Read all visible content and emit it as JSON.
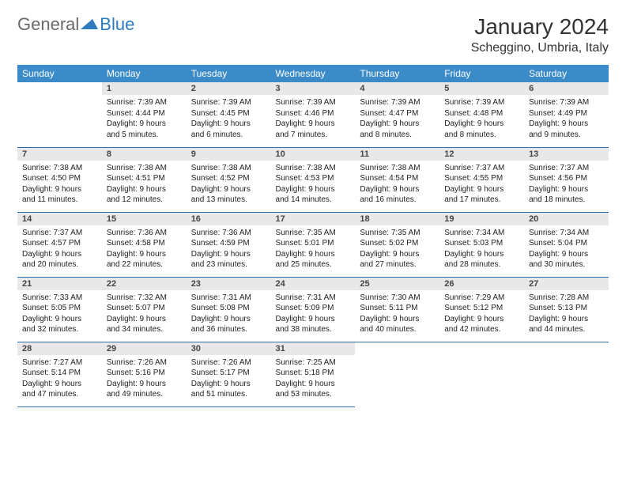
{
  "logo": {
    "text1": "General",
    "text2": "Blue"
  },
  "header": {
    "title": "January 2024",
    "location": "Scheggino, Umbria, Italy"
  },
  "colors": {
    "header_bg": "#3b8bc9",
    "header_fg": "#ffffff",
    "daynum_bg": "#e8e8e8",
    "border": "#2a6fa8",
    "logo_gray": "#6a6a6a",
    "logo_blue": "#2f7bbf"
  },
  "weekdays": [
    "Sunday",
    "Monday",
    "Tuesday",
    "Wednesday",
    "Thursday",
    "Friday",
    "Saturday"
  ],
  "weeks": [
    [
      null,
      {
        "n": "1",
        "sr": "Sunrise: 7:39 AM",
        "ss": "Sunset: 4:44 PM",
        "d1": "Daylight: 9 hours",
        "d2": "and 5 minutes."
      },
      {
        "n": "2",
        "sr": "Sunrise: 7:39 AM",
        "ss": "Sunset: 4:45 PM",
        "d1": "Daylight: 9 hours",
        "d2": "and 6 minutes."
      },
      {
        "n": "3",
        "sr": "Sunrise: 7:39 AM",
        "ss": "Sunset: 4:46 PM",
        "d1": "Daylight: 9 hours",
        "d2": "and 7 minutes."
      },
      {
        "n": "4",
        "sr": "Sunrise: 7:39 AM",
        "ss": "Sunset: 4:47 PM",
        "d1": "Daylight: 9 hours",
        "d2": "and 8 minutes."
      },
      {
        "n": "5",
        "sr": "Sunrise: 7:39 AM",
        "ss": "Sunset: 4:48 PM",
        "d1": "Daylight: 9 hours",
        "d2": "and 8 minutes."
      },
      {
        "n": "6",
        "sr": "Sunrise: 7:39 AM",
        "ss": "Sunset: 4:49 PM",
        "d1": "Daylight: 9 hours",
        "d2": "and 9 minutes."
      }
    ],
    [
      {
        "n": "7",
        "sr": "Sunrise: 7:38 AM",
        "ss": "Sunset: 4:50 PM",
        "d1": "Daylight: 9 hours",
        "d2": "and 11 minutes."
      },
      {
        "n": "8",
        "sr": "Sunrise: 7:38 AM",
        "ss": "Sunset: 4:51 PM",
        "d1": "Daylight: 9 hours",
        "d2": "and 12 minutes."
      },
      {
        "n": "9",
        "sr": "Sunrise: 7:38 AM",
        "ss": "Sunset: 4:52 PM",
        "d1": "Daylight: 9 hours",
        "d2": "and 13 minutes."
      },
      {
        "n": "10",
        "sr": "Sunrise: 7:38 AM",
        "ss": "Sunset: 4:53 PM",
        "d1": "Daylight: 9 hours",
        "d2": "and 14 minutes."
      },
      {
        "n": "11",
        "sr": "Sunrise: 7:38 AM",
        "ss": "Sunset: 4:54 PM",
        "d1": "Daylight: 9 hours",
        "d2": "and 16 minutes."
      },
      {
        "n": "12",
        "sr": "Sunrise: 7:37 AM",
        "ss": "Sunset: 4:55 PM",
        "d1": "Daylight: 9 hours",
        "d2": "and 17 minutes."
      },
      {
        "n": "13",
        "sr": "Sunrise: 7:37 AM",
        "ss": "Sunset: 4:56 PM",
        "d1": "Daylight: 9 hours",
        "d2": "and 18 minutes."
      }
    ],
    [
      {
        "n": "14",
        "sr": "Sunrise: 7:37 AM",
        "ss": "Sunset: 4:57 PM",
        "d1": "Daylight: 9 hours",
        "d2": "and 20 minutes."
      },
      {
        "n": "15",
        "sr": "Sunrise: 7:36 AM",
        "ss": "Sunset: 4:58 PM",
        "d1": "Daylight: 9 hours",
        "d2": "and 22 minutes."
      },
      {
        "n": "16",
        "sr": "Sunrise: 7:36 AM",
        "ss": "Sunset: 4:59 PM",
        "d1": "Daylight: 9 hours",
        "d2": "and 23 minutes."
      },
      {
        "n": "17",
        "sr": "Sunrise: 7:35 AM",
        "ss": "Sunset: 5:01 PM",
        "d1": "Daylight: 9 hours",
        "d2": "and 25 minutes."
      },
      {
        "n": "18",
        "sr": "Sunrise: 7:35 AM",
        "ss": "Sunset: 5:02 PM",
        "d1": "Daylight: 9 hours",
        "d2": "and 27 minutes."
      },
      {
        "n": "19",
        "sr": "Sunrise: 7:34 AM",
        "ss": "Sunset: 5:03 PM",
        "d1": "Daylight: 9 hours",
        "d2": "and 28 minutes."
      },
      {
        "n": "20",
        "sr": "Sunrise: 7:34 AM",
        "ss": "Sunset: 5:04 PM",
        "d1": "Daylight: 9 hours",
        "d2": "and 30 minutes."
      }
    ],
    [
      {
        "n": "21",
        "sr": "Sunrise: 7:33 AM",
        "ss": "Sunset: 5:05 PM",
        "d1": "Daylight: 9 hours",
        "d2": "and 32 minutes."
      },
      {
        "n": "22",
        "sr": "Sunrise: 7:32 AM",
        "ss": "Sunset: 5:07 PM",
        "d1": "Daylight: 9 hours",
        "d2": "and 34 minutes."
      },
      {
        "n": "23",
        "sr": "Sunrise: 7:31 AM",
        "ss": "Sunset: 5:08 PM",
        "d1": "Daylight: 9 hours",
        "d2": "and 36 minutes."
      },
      {
        "n": "24",
        "sr": "Sunrise: 7:31 AM",
        "ss": "Sunset: 5:09 PM",
        "d1": "Daylight: 9 hours",
        "d2": "and 38 minutes."
      },
      {
        "n": "25",
        "sr": "Sunrise: 7:30 AM",
        "ss": "Sunset: 5:11 PM",
        "d1": "Daylight: 9 hours",
        "d2": "and 40 minutes."
      },
      {
        "n": "26",
        "sr": "Sunrise: 7:29 AM",
        "ss": "Sunset: 5:12 PM",
        "d1": "Daylight: 9 hours",
        "d2": "and 42 minutes."
      },
      {
        "n": "27",
        "sr": "Sunrise: 7:28 AM",
        "ss": "Sunset: 5:13 PM",
        "d1": "Daylight: 9 hours",
        "d2": "and 44 minutes."
      }
    ],
    [
      {
        "n": "28",
        "sr": "Sunrise: 7:27 AM",
        "ss": "Sunset: 5:14 PM",
        "d1": "Daylight: 9 hours",
        "d2": "and 47 minutes."
      },
      {
        "n": "29",
        "sr": "Sunrise: 7:26 AM",
        "ss": "Sunset: 5:16 PM",
        "d1": "Daylight: 9 hours",
        "d2": "and 49 minutes."
      },
      {
        "n": "30",
        "sr": "Sunrise: 7:26 AM",
        "ss": "Sunset: 5:17 PM",
        "d1": "Daylight: 9 hours",
        "d2": "and 51 minutes."
      },
      {
        "n": "31",
        "sr": "Sunrise: 7:25 AM",
        "ss": "Sunset: 5:18 PM",
        "d1": "Daylight: 9 hours",
        "d2": "and 53 minutes."
      },
      null,
      null,
      null
    ]
  ]
}
